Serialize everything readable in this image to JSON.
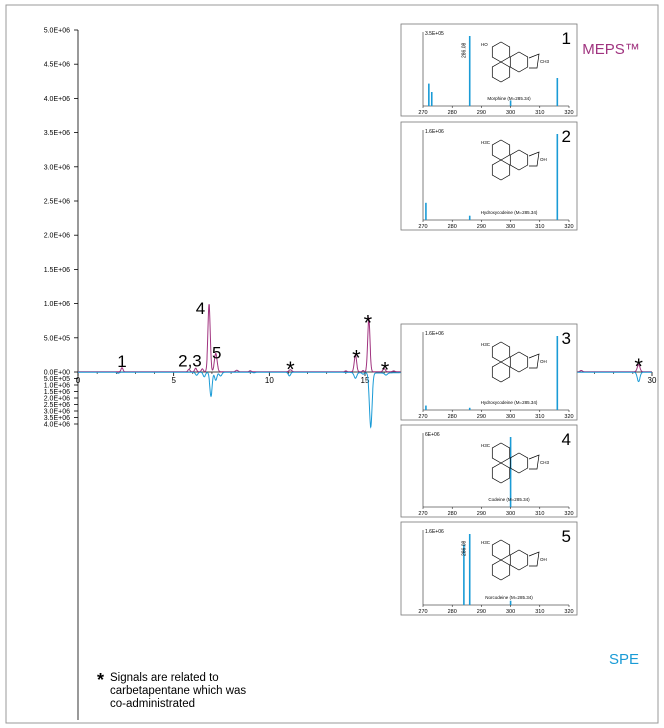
{
  "colors": {
    "meps": "#a0337f",
    "spe": "#1a9bd6",
    "axis": "#000000",
    "frame": "#999999"
  },
  "labels": {
    "meps": "MEPS™",
    "spe": "SPE",
    "footnote_star": "*",
    "footnote": [
      "Signals are related to",
      "carbetapentane which was",
      "co-administrated"
    ]
  },
  "chart_data": {
    "type": "line",
    "x_ticks": [
      "0",
      "5",
      "10",
      "15",
      "20",
      "25",
      "30"
    ],
    "xlim": [
      0,
      30
    ],
    "top_yticks": [
      "5.0E+06",
      "4.5E+06",
      "4.0E+06",
      "3.5E+06",
      "3.0E+06",
      "2.5E+06",
      "2.0E+06",
      "1.5E+06",
      "1.0E+06",
      "5.0E+05",
      "0.0E+00"
    ],
    "bottom_yticks": [
      "5.0E+05",
      "1.0E+06",
      "1.5E+06",
      "2.0E+06",
      "2.5E+06",
      "3.0E+06",
      "3.5E+06",
      "4.0E+06"
    ],
    "series": [
      {
        "name": "MEPS™",
        "baseline": 20000,
        "peaks": [
          [
            2.3,
            290000,
            0.05
          ],
          [
            5.8,
            180000,
            0.05
          ],
          [
            6.15,
            260000,
            0.05
          ],
          [
            6.5,
            210000,
            0.05
          ],
          [
            6.85,
            4950000,
            0.06
          ],
          [
            7.2,
            1350000,
            0.07
          ],
          [
            8.3,
            110000,
            0.06
          ],
          [
            9.0,
            70000,
            0.05
          ],
          [
            11.1,
            140000,
            0.07
          ],
          [
            14.0,
            60000,
            0.05
          ],
          [
            14.5,
            1250000,
            0.06
          ],
          [
            14.9,
            90000,
            0.04
          ],
          [
            15.2,
            3900000,
            0.06
          ],
          [
            16.0,
            230000,
            0.06
          ],
          [
            16.5,
            60000,
            0.06
          ],
          [
            18.5,
            480000,
            0.07
          ],
          [
            19.5,
            70000,
            0.05
          ],
          [
            21.3,
            640000,
            0.06
          ],
          [
            23.5,
            70000,
            0.06
          ],
          [
            26.3,
            90000,
            0.06
          ],
          [
            29.3,
            520000,
            0.07
          ]
        ]
      },
      {
        "name": "SPE",
        "baseline": 20000,
        "peaks": [
          [
            2.1,
            70000,
            0.06
          ],
          [
            6.2,
            230000,
            0.06
          ],
          [
            6.6,
            350000,
            0.06
          ],
          [
            6.95,
            1860000,
            0.06
          ],
          [
            7.2,
            620000,
            0.06
          ],
          [
            7.45,
            290000,
            0.07
          ],
          [
            9.2,
            40000,
            0.06
          ],
          [
            11.05,
            280000,
            0.06
          ],
          [
            14.5,
            440000,
            0.07
          ],
          [
            14.9,
            110000,
            0.05
          ],
          [
            15.3,
            4170000,
            0.07
          ],
          [
            16.1,
            160000,
            0.07
          ],
          [
            18.6,
            180000,
            0.07
          ],
          [
            21.3,
            130000,
            0.07
          ],
          [
            23.0,
            40000,
            0.06
          ],
          [
            29.3,
            720000,
            0.07
          ]
        ]
      }
    ],
    "peak_labels": [
      {
        "text": "1",
        "x": 2.3,
        "y": 380000
      },
      {
        "text": "2,3",
        "x": 5.85,
        "y": 410000
      },
      {
        "text": "4",
        "x": 6.4,
        "y": 4250000
      },
      {
        "text": "5",
        "x": 7.25,
        "y": 1000000
      },
      {
        "text": "*",
        "x": 11.1,
        "y": 220000
      },
      {
        "text": "*",
        "x": 14.55,
        "y": 1050000
      },
      {
        "text": "*",
        "x": 15.15,
        "y": 3640000
      },
      {
        "text": "*",
        "x": 16.05,
        "y": 190000
      },
      {
        "text": "*",
        "x": 18.5,
        "y": 430000
      },
      {
        "text": "*",
        "x": 21.3,
        "y": 570000
      },
      {
        "text": "*",
        "x": 29.3,
        "y": 450000
      }
    ]
  },
  "insets": [
    {
      "number": "1",
      "ymax": "3.5E+05",
      "peak_label": "286.08",
      "compound": "Morphine (M=285.34)",
      "substituent": "CH3",
      "ring_label": "HO",
      "xticks": [
        "270",
        "280",
        "290",
        "300",
        "310",
        "320"
      ],
      "bars": [
        [
          272,
          0.32
        ],
        [
          273,
          0.2
        ],
        [
          286,
          1.0
        ],
        [
          300,
          0.08
        ],
        [
          316,
          0.4
        ]
      ]
    },
    {
      "number": "2",
      "ymax": "1.6E+06",
      "peak_label": "",
      "compound": "Hydroxycodeine (M=285.34)",
      "substituent": "OH",
      "ring_label": "H3C",
      "xticks": [
        "270",
        "280",
        "290",
        "300",
        "310",
        "320"
      ],
      "bars": [
        [
          271,
          0.2
        ],
        [
          286,
          0.05
        ],
        [
          316,
          1.0
        ]
      ]
    },
    {
      "number": "3",
      "ymax": "1.6E+06",
      "peak_label": "",
      "compound": "Hydroxycodeine (M=285.34)",
      "substituent": "OH",
      "ring_label": "H3C",
      "xticks": [
        "270",
        "280",
        "290",
        "300",
        "310",
        "320"
      ],
      "bars": [
        [
          271,
          0.06
        ],
        [
          286,
          0.03
        ],
        [
          316,
          1.0
        ]
      ]
    },
    {
      "number": "4",
      "ymax": "6E+06",
      "peak_label": "",
      "compound": "Codeine (M=285.34)",
      "substituent": "CH3",
      "ring_label": "H3C",
      "xticks": [
        "270",
        "280",
        "290",
        "300",
        "310",
        "320"
      ],
      "bars": [
        [
          300,
          1.0
        ]
      ]
    },
    {
      "number": "5",
      "ymax": "1.6E+06",
      "peak_label": "286.08",
      "compound": "Norcodeine (M=285.34)",
      "substituent": "OH",
      "ring_label": "H3C",
      "xticks": [
        "270",
        "280",
        "290",
        "300",
        "310",
        "320"
      ],
      "bars": [
        [
          284,
          0.85
        ],
        [
          286,
          1.0
        ],
        [
          300,
          0.06
        ]
      ]
    }
  ]
}
